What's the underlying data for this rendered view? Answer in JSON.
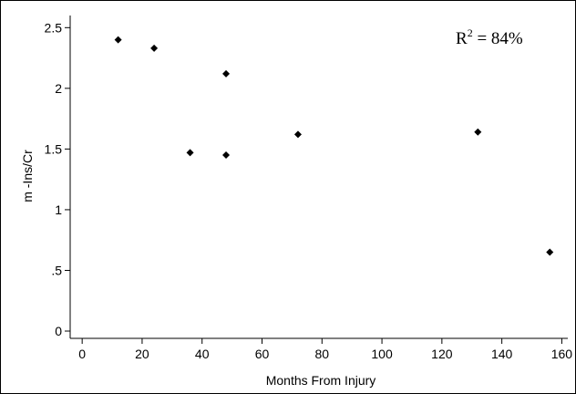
{
  "chart_data": {
    "type": "scatter",
    "xlabel": "Months From Injury",
    "ylabel": "m -Ins/Cr",
    "xlim": [
      -4,
      162
    ],
    "ylim": [
      -0.06,
      2.6
    ],
    "x_ticks": [
      0,
      20,
      40,
      60,
      80,
      100,
      120,
      140,
      160
    ],
    "x_tick_labels": [
      "0",
      "20",
      "40",
      "60",
      "80",
      "100",
      "120",
      "140",
      "160"
    ],
    "y_ticks": [
      0,
      0.5,
      1,
      1.5,
      2,
      2.5
    ],
    "y_tick_labels": [
      "0",
      ".5",
      "1",
      "1.5",
      "2",
      "2.5"
    ],
    "grid": false,
    "marker": "diamond",
    "marker_color": "#000000",
    "points": [
      {
        "x": 12,
        "y": 2.4
      },
      {
        "x": 24,
        "y": 2.33
      },
      {
        "x": 36,
        "y": 1.47
      },
      {
        "x": 48,
        "y": 2.12
      },
      {
        "x": 48,
        "y": 1.45
      },
      {
        "x": 72,
        "y": 1.62
      },
      {
        "x": 132,
        "y": 1.64
      },
      {
        "x": 156,
        "y": 0.65
      }
    ],
    "annotation": {
      "base": "R",
      "superscript": "2",
      "rest": " = 84%"
    }
  }
}
